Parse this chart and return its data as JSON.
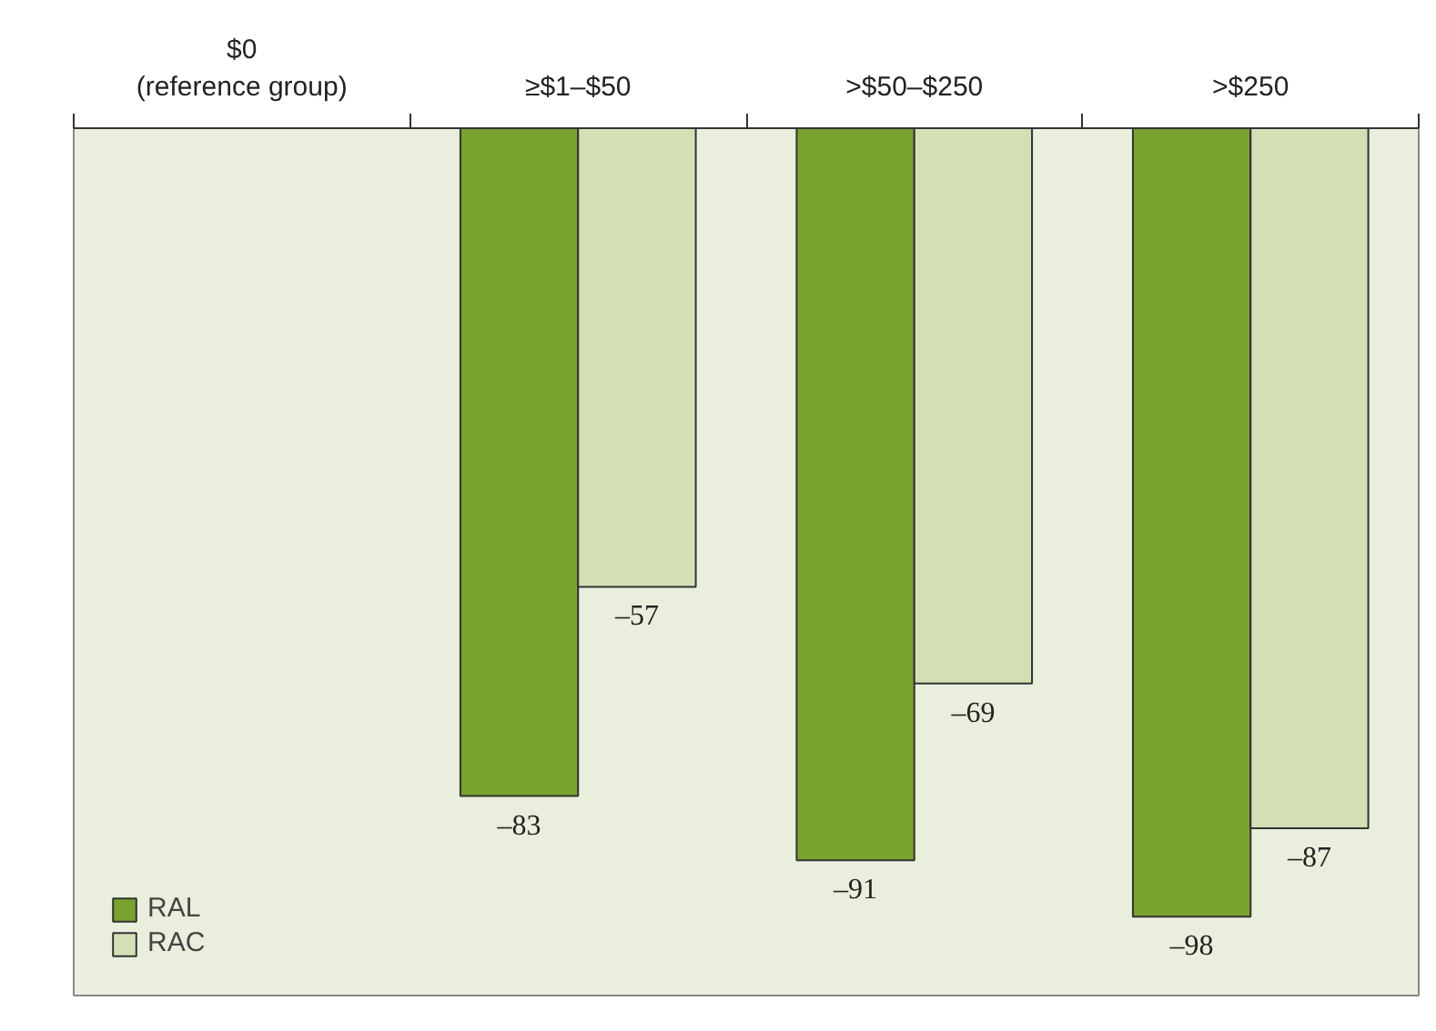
{
  "chart_data": {
    "type": "bar",
    "categories": [
      "$0\n(reference group)",
      "≥$1–$50",
      ">$50–$250",
      ">$250"
    ],
    "series": [
      {
        "name": "RAL",
        "color": "#7aa22f",
        "values": [
          null,
          -83,
          -91,
          -98
        ],
        "value_labels": [
          null,
          "–83",
          "–91",
          "–98"
        ]
      },
      {
        "name": "RAC",
        "color": "#d3e0b6",
        "values": [
          null,
          -57,
          -69,
          -87
        ],
        "value_labels": [
          null,
          "–57",
          "–69",
          "–87"
        ]
      }
    ],
    "legend": "bottom left",
    "grid": false
  }
}
